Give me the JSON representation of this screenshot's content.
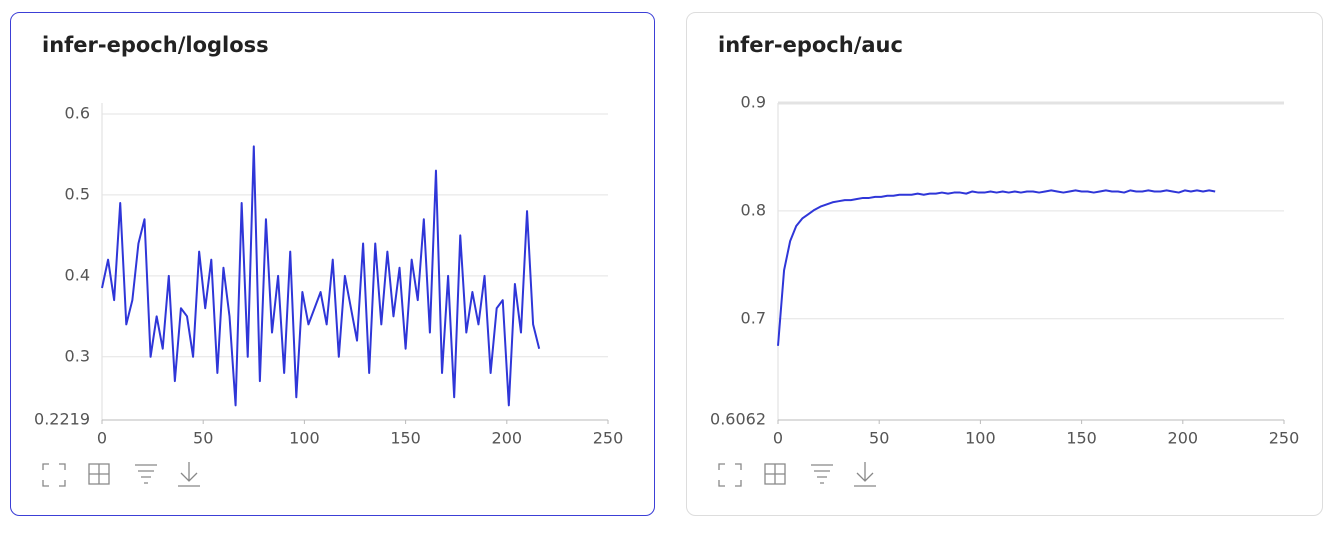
{
  "chart_data": [
    {
      "type": "line",
      "title": "infer-epoch/logloss",
      "x": [
        0,
        3,
        6,
        9,
        12,
        15,
        18,
        21,
        24,
        27,
        30,
        33,
        36,
        39,
        42,
        45,
        48,
        51,
        54,
        57,
        60,
        63,
        66,
        69,
        72,
        75,
        78,
        81,
        84,
        87,
        90,
        93,
        96,
        99,
        102,
        105,
        108,
        111,
        114,
        117,
        120,
        123,
        126,
        129,
        132,
        135,
        138,
        141,
        144,
        147,
        150,
        153,
        156,
        159,
        162,
        165,
        168,
        171,
        174,
        177,
        180,
        183,
        186,
        189,
        192,
        195,
        198,
        201,
        204,
        207,
        210,
        213,
        216
      ],
      "series": [
        {
          "color": "#2f36d8",
          "values": [
            0.385,
            0.42,
            0.37,
            0.49,
            0.34,
            0.37,
            0.44,
            0.47,
            0.3,
            0.35,
            0.31,
            0.4,
            0.27,
            0.36,
            0.35,
            0.3,
            0.43,
            0.36,
            0.42,
            0.28,
            0.41,
            0.35,
            0.24,
            0.49,
            0.3,
            0.56,
            0.27,
            0.47,
            0.33,
            0.4,
            0.28,
            0.43,
            0.25,
            0.38,
            0.34,
            0.36,
            0.38,
            0.34,
            0.42,
            0.3,
            0.4,
            0.36,
            0.32,
            0.44,
            0.28,
            0.44,
            0.34,
            0.43,
            0.35,
            0.41,
            0.31,
            0.42,
            0.37,
            0.47,
            0.33,
            0.53,
            0.28,
            0.4,
            0.25,
            0.45,
            0.33,
            0.38,
            0.34,
            0.4,
            0.28,
            0.36,
            0.37,
            0.24,
            0.39,
            0.33,
            0.48,
            0.34,
            0.31
          ]
        }
      ],
      "xlim": [
        0,
        250
      ],
      "xticks": [
        0,
        50,
        100,
        150,
        200,
        250
      ],
      "ylim": [
        0.2219,
        0.6136
      ],
      "yticks": [
        0.2219,
        0.3,
        0.4,
        0.5,
        0.6
      ],
      "grid": true
    },
    {
      "type": "line",
      "title": "infer-epoch/auc",
      "x": [
        0,
        3,
        6,
        9,
        12,
        15,
        18,
        21,
        24,
        27,
        30,
        33,
        36,
        39,
        42,
        45,
        48,
        51,
        54,
        57,
        60,
        63,
        66,
        69,
        72,
        75,
        78,
        81,
        84,
        87,
        90,
        93,
        96,
        99,
        102,
        105,
        108,
        111,
        114,
        117,
        120,
        123,
        126,
        129,
        132,
        135,
        138,
        141,
        144,
        147,
        150,
        153,
        156,
        159,
        162,
        165,
        168,
        171,
        174,
        177,
        180,
        183,
        186,
        189,
        192,
        195,
        198,
        201,
        204,
        207,
        210,
        213,
        216
      ],
      "series": [
        {
          "color": "#2f36d8",
          "values": [
            0.675,
            0.745,
            0.772,
            0.786,
            0.793,
            0.797,
            0.801,
            0.804,
            0.806,
            0.808,
            0.809,
            0.81,
            0.81,
            0.811,
            0.812,
            0.812,
            0.813,
            0.813,
            0.814,
            0.814,
            0.815,
            0.815,
            0.815,
            0.816,
            0.815,
            0.816,
            0.816,
            0.817,
            0.816,
            0.817,
            0.817,
            0.816,
            0.818,
            0.817,
            0.817,
            0.818,
            0.817,
            0.818,
            0.817,
            0.818,
            0.817,
            0.818,
            0.818,
            0.817,
            0.818,
            0.819,
            0.818,
            0.817,
            0.818,
            0.819,
            0.818,
            0.818,
            0.817,
            0.818,
            0.819,
            0.818,
            0.818,
            0.817,
            0.819,
            0.818,
            0.818,
            0.819,
            0.818,
            0.818,
            0.819,
            0.818,
            0.817,
            0.819,
            0.818,
            0.819,
            0.818,
            0.819,
            0.818
          ]
        }
      ],
      "xlim": [
        0,
        250
      ],
      "xticks": [
        0,
        50,
        100,
        150,
        200,
        250
      ],
      "ylim": [
        0.6062,
        0.9
      ],
      "yticks": [
        0.6062,
        0.7,
        0.8,
        0.9
      ],
      "grid": true
    }
  ]
}
